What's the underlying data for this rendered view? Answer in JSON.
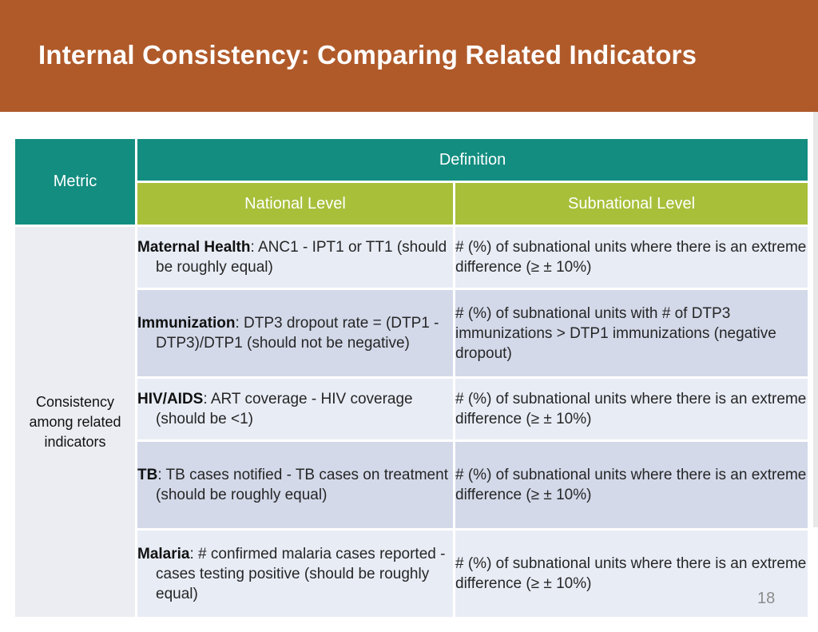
{
  "slide": {
    "title": "Internal Consistency: Comparing Related Indicators",
    "page_number": "18"
  },
  "table": {
    "header": {
      "metric": "Metric",
      "definition": "Definition",
      "national": "National Level",
      "subnational": "Subnational Level"
    },
    "metric_label": "Consistency among related indicators",
    "rows": [
      {
        "name": "Maternal Health",
        "sep": ":  ",
        "national_rest": "ANC1 - IPT1 or TT1 (should be roughly equal)",
        "subnational": "# (%) of subnational units where there is an extreme difference (≥ ± 10%)"
      },
      {
        "name": "Immunization",
        "sep": ":  ",
        "national_rest": "DTP3 dropout rate = (DTP1 - DTP3)/DTP1 (should not be negative)",
        "subnational": "# (%) of subnational units with # of DTP3 immunizations > DTP1 immunizations (negative dropout)"
      },
      {
        "name": "HIV/AIDS",
        "sep": ":  ",
        "national_rest": "ART coverage - HIV coverage (should be <1)",
        "subnational": "# (%) of subnational units where there is an extreme difference (≥ ± 10%)"
      },
      {
        "name": "TB",
        "sep": ":  ",
        "national_rest": "TB cases notified - TB cases on treatment (should be roughly equal)",
        "subnational": "# (%) of subnational units where there is an extreme difference (≥ ± 10%)"
      },
      {
        "name": "Malaria",
        "sep": ":  ",
        "national_rest": "# confirmed malaria cases reported - cases testing positive (should be roughly equal)",
        "subnational": "# (%) of subnational units where there is an extreme difference (≥ ± 10%)"
      }
    ]
  }
}
